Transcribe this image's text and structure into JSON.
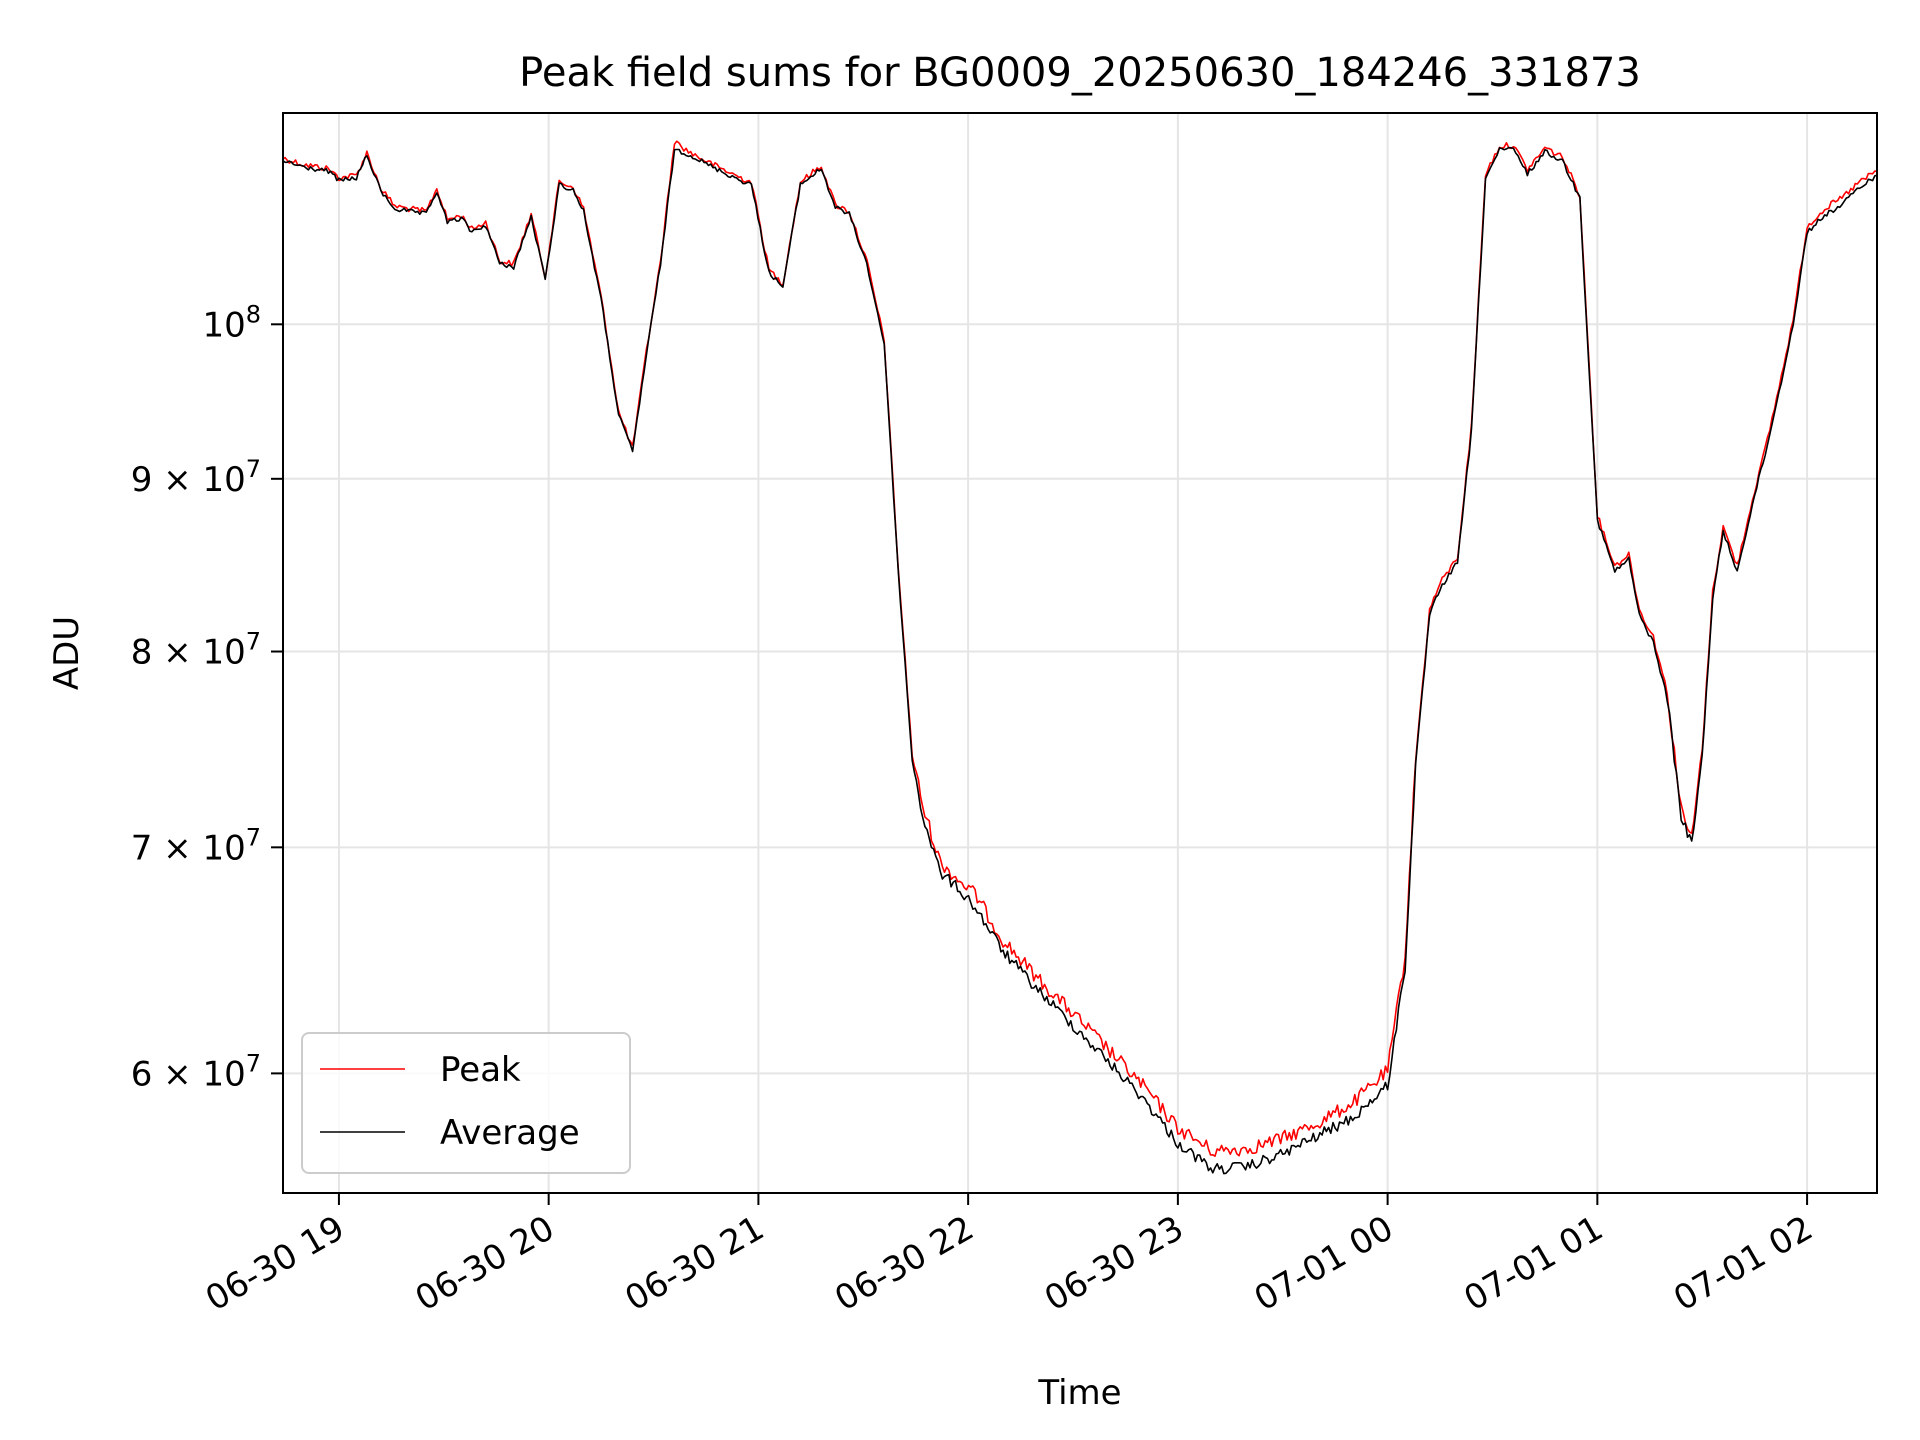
{
  "chart_data": {
    "type": "line",
    "title": "Peak field sums for BG0009_20250630_184246_331873",
    "xlabel": "Time",
    "ylabel": "ADU",
    "yscale": "log",
    "grid": true,
    "legend_position": "lower-left",
    "xlim": [
      "2025-06-30 18:44",
      "2025-07-01 02:20"
    ],
    "ylim": [
      55300000,
      115500000
    ],
    "x_ticks": [
      "2025-06-30 19:00",
      "2025-06-30 20:00",
      "2025-06-30 21:00",
      "2025-06-30 22:00",
      "2025-06-30 23:00",
      "2025-07-01 00:00",
      "2025-07-01 01:00",
      "2025-07-01 02:00"
    ],
    "x_tick_labels": [
      "06-30 19",
      "06-30 20",
      "06-30 21",
      "06-30 22",
      "06-30 23",
      "07-01 00",
      "07-01 01",
      "07-01 02"
    ],
    "y_ticks": [
      {
        "value": 100000000,
        "mantissa": "",
        "exp": "8"
      },
      {
        "value": 90000000,
        "mantissa": "9",
        "exp": "7"
      },
      {
        "value": 80000000,
        "mantissa": "8",
        "exp": "7"
      },
      {
        "value": 70000000,
        "mantissa": "7",
        "exp": "7"
      },
      {
        "value": 60000000,
        "mantissa": "6",
        "exp": "7"
      }
    ],
    "series": [
      {
        "name": "Peak",
        "color": "#ff0000"
      },
      {
        "name": "Average",
        "color": "#000000"
      }
    ],
    "x": [
      "2025-06-30 18:44",
      "2025-06-30 18:50",
      "2025-06-30 18:57",
      "2025-06-30 19:00",
      "2025-06-30 19:05",
      "2025-06-30 19:08",
      "2025-06-30 19:12",
      "2025-06-30 19:16",
      "2025-06-30 19:20",
      "2025-06-30 19:25",
      "2025-06-30 19:28",
      "2025-06-30 19:31",
      "2025-06-30 19:35",
      "2025-06-30 19:38",
      "2025-06-30 19:42",
      "2025-06-30 19:46",
      "2025-06-30 19:50",
      "2025-06-30 19:55",
      "2025-06-30 19:59",
      "2025-06-30 20:03",
      "2025-06-30 20:07",
      "2025-06-30 20:10",
      "2025-06-30 20:15",
      "2025-06-30 20:20",
      "2025-06-30 20:24",
      "2025-06-30 20:28",
      "2025-06-30 20:32",
      "2025-06-30 20:36",
      "2025-06-30 20:40",
      "2025-06-30 20:47",
      "2025-06-30 20:55",
      "2025-06-30 20:58",
      "2025-06-30 21:03",
      "2025-06-30 21:07",
      "2025-06-30 21:12",
      "2025-06-30 21:18",
      "2025-06-30 21:22",
      "2025-06-30 21:26",
      "2025-06-30 21:31",
      "2025-06-30 21:36",
      "2025-06-30 21:40",
      "2025-06-30 21:44",
      "2025-06-30 21:47",
      "2025-06-30 21:52",
      "2025-06-30 21:57",
      "2025-06-30 22:02",
      "2025-06-30 22:10",
      "2025-06-30 22:20",
      "2025-06-30 22:30",
      "2025-06-30 22:40",
      "2025-06-30 22:50",
      "2025-06-30 23:00",
      "2025-06-30 23:10",
      "2025-06-30 23:20",
      "2025-06-30 23:30",
      "2025-06-30 23:40",
      "2025-06-30 23:50",
      "2025-07-01 00:00",
      "2025-07-01 00:05",
      "2025-07-01 00:08",
      "2025-07-01 00:12",
      "2025-07-01 00:15",
      "2025-07-01 00:20",
      "2025-07-01 00:24",
      "2025-07-01 00:28",
      "2025-07-01 00:32",
      "2025-07-01 00:36",
      "2025-07-01 00:40",
      "2025-07-01 00:45",
      "2025-07-01 00:50",
      "2025-07-01 00:55",
      "2025-07-01 01:00",
      "2025-07-01 01:05",
      "2025-07-01 01:09",
      "2025-07-01 01:12",
      "2025-07-01 01:16",
      "2025-07-01 01:20",
      "2025-07-01 01:24",
      "2025-07-01 01:27",
      "2025-07-01 01:30",
      "2025-07-01 01:33",
      "2025-07-01 01:36",
      "2025-07-01 01:40",
      "2025-07-01 01:45",
      "2025-07-01 01:48",
      "2025-07-01 01:52",
      "2025-07-01 01:56",
      "2025-07-01 02:00",
      "2025-07-01 02:05",
      "2025-07-01 02:10",
      "2025-07-01 02:15",
      "2025-07-01 02:20"
    ],
    "average": [
      111800000,
      111300000,
      111000000,
      110300000,
      110500000,
      112200000,
      109500000,
      108200000,
      108000000,
      107800000,
      109500000,
      107200000,
      107500000,
      106500000,
      107000000,
      104200000,
      104000000,
      107600000,
      103100000,
      110000000,
      109600000,
      108000000,
      101700000,
      94000000,
      91700000,
      98000000,
      104200000,
      112700000,
      112300000,
      111300000,
      110300000,
      110000000,
      103600000,
      102600000,
      110000000,
      111200000,
      108300000,
      107800000,
      104200000,
      98700000,
      84500000,
      74300000,
      71500000,
      68800000,
      68100000,
      67200000,
      65200000,
      63500000,
      62000000,
      60500000,
      59000000,
      57200000,
      56200000,
      56300000,
      56800000,
      57500000,
      58200000,
      59500000,
      64500000,
      74000000,
      82000000,
      83500000,
      85000000,
      93000000,
      110500000,
      112600000,
      112700000,
      110800000,
      112500000,
      111800000,
      109000000,
      87500000,
      84500000,
      85200000,
      82000000,
      80500000,
      77500000,
      71500000,
      70100000,
      74500000,
      83000000,
      86800000,
      84500000,
      89000000,
      91500000,
      95500000,
      100000000,
      106500000,
      107700000,
      108500000,
      109800000,
      110700000
    ],
    "peak": [
      112000000,
      111500000,
      111200000,
      110500000,
      110700000,
      112400000,
      109700000,
      108400000,
      108200000,
      108000000,
      109700000,
      107400000,
      107700000,
      106700000,
      107200000,
      104400000,
      104200000,
      107800000,
      103300000,
      110200000,
      109800000,
      108200000,
      101900000,
      94200000,
      91900000,
      98200000,
      104400000,
      113300000,
      112500000,
      111500000,
      110500000,
      110200000,
      103800000,
      102800000,
      110200000,
      111400000,
      108500000,
      108000000,
      104400000,
      98900000,
      84700000,
      74600000,
      72000000,
      69300000,
      68500000,
      67800000,
      65700000,
      64000000,
      62500000,
      61000000,
      59500000,
      57800000,
      56900000,
      57000000,
      57400000,
      58000000,
      58800000,
      60100000,
      65000000,
      74300000,
      82300000,
      83800000,
      85300000,
      93300000,
      110800000,
      112900000,
      113000000,
      111100000,
      112800000,
      112100000,
      109200000,
      87800000,
      84800000,
      85500000,
      82300000,
      80800000,
      77800000,
      71800000,
      70400000,
      74800000,
      83300000,
      87100000,
      84800000,
      89300000,
      91800000,
      95800000,
      100300000,
      106900000,
      108200000,
      109000000,
      110200000,
      111000000
    ]
  }
}
